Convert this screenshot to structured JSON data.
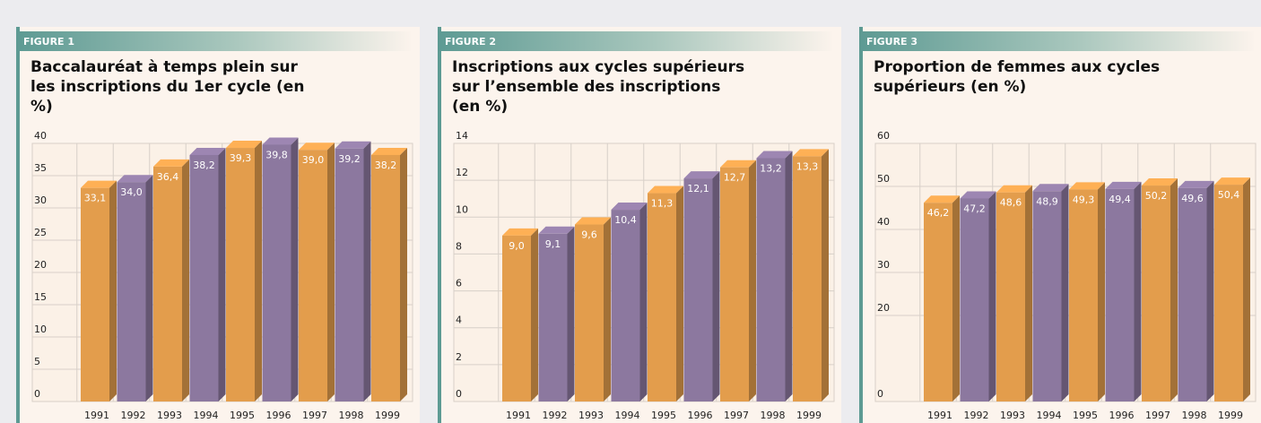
{
  "chart_data": [
    {
      "type": "bar",
      "label": "FIGURE 1",
      "title": "Baccalauréat à temps plein sur les inscriptions du 1er cycle (en %)",
      "categories": [
        "1991",
        "1992",
        "1993",
        "1994",
        "1995",
        "1996",
        "1997",
        "1998",
        "1999"
      ],
      "values": [
        33.1,
        34.0,
        36.4,
        38.2,
        39.3,
        39.8,
        39.0,
        39.2,
        38.2
      ],
      "value_labels": [
        "33,1",
        "34,0",
        "36,4",
        "38,2",
        "39,3",
        "39,8",
        "39,0",
        "39,2",
        "38,2"
      ],
      "colors": [
        "#e39d4c",
        "#8c789f",
        "#e39d4c",
        "#8c789f",
        "#e39d4c",
        "#8c789f",
        "#e39d4c",
        "#8c789f",
        "#e39d4c"
      ],
      "ylim": [
        0,
        40
      ],
      "yticks": [
        0,
        5,
        10,
        15,
        20,
        25,
        30,
        35,
        40
      ],
      "grid": true
    },
    {
      "type": "bar",
      "label": "FIGURE 2",
      "title": "Inscriptions aux cycles supérieurs sur l’ensemble des inscriptions (en %)",
      "categories": [
        "1991",
        "1992",
        "1993",
        "1994",
        "1995",
        "1996",
        "1997",
        "1998",
        "1999"
      ],
      "values": [
        9.0,
        9.1,
        9.6,
        10.4,
        11.3,
        12.1,
        12.7,
        13.2,
        13.3
      ],
      "value_labels": [
        "9,0",
        "9,1",
        "9,6",
        "10,4",
        "11,3",
        "12,1",
        "12,7",
        "13,2",
        "13,3"
      ],
      "colors": [
        "#e39d4c",
        "#8c789f",
        "#e39d4c",
        "#8c789f",
        "#e39d4c",
        "#8c789f",
        "#e39d4c",
        "#8c789f",
        "#e39d4c"
      ],
      "ylim": [
        0,
        14
      ],
      "yticks": [
        0,
        2,
        4,
        6,
        8,
        10,
        12,
        14
      ],
      "grid": true
    },
    {
      "type": "bar",
      "label": "FIGURE 3",
      "title": "Proportion de femmes aux cycles supérieurs (en %)",
      "categories": [
        "1991",
        "1992",
        "1993",
        "1994",
        "1995",
        "1996",
        "1997",
        "1998",
        "1999"
      ],
      "values": [
        46.2,
        47.2,
        48.6,
        48.9,
        49.3,
        49.4,
        50.2,
        49.6,
        50.4
      ],
      "value_labels": [
        "46,2",
        "47,2",
        "48,6",
        "48,9",
        "49,3",
        "49,4",
        "50,2",
        "49,6",
        "50,4"
      ],
      "colors": [
        "#e39d4c",
        "#8c789f",
        "#e39d4c",
        "#8c789f",
        "#e39d4c",
        "#8c789f",
        "#e39d4c",
        "#8c789f",
        "#e39d4c"
      ],
      "ylim": [
        0,
        60
      ],
      "yticks": [
        0,
        20,
        30,
        40,
        50,
        60
      ],
      "grid": true
    }
  ]
}
